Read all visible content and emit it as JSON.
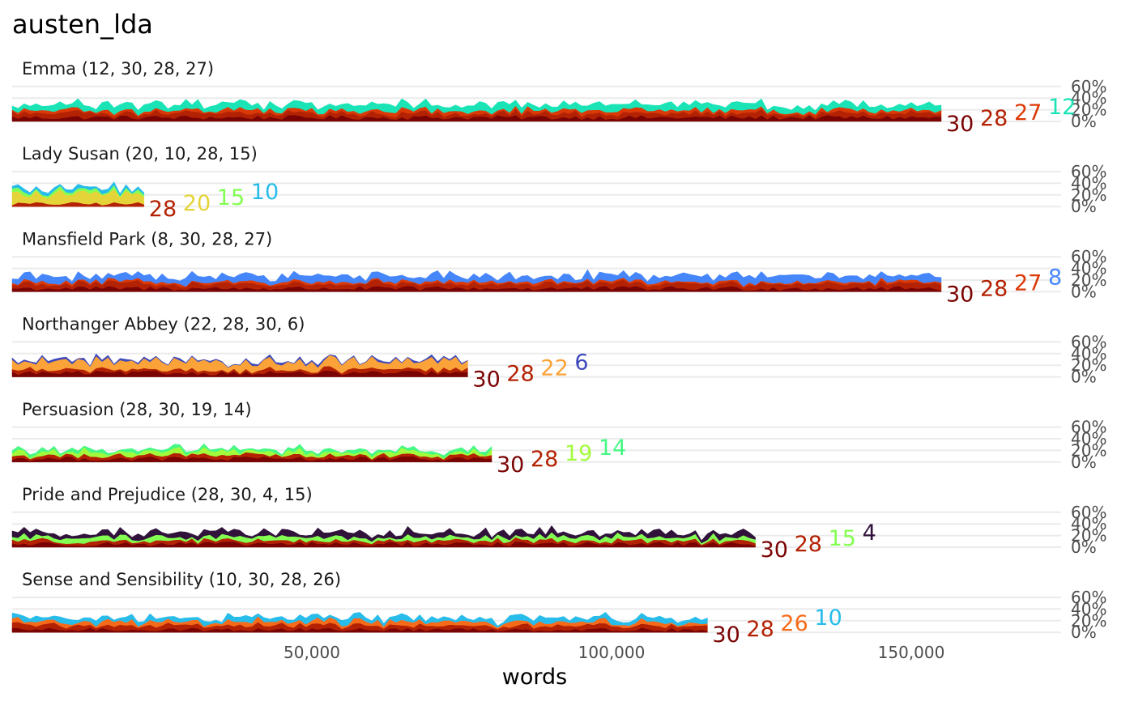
{
  "chart_data": {
    "type": "area",
    "title": "austen_lda",
    "xlabel": "words",
    "ylabel": "",
    "xlim": [
      0,
      175000
    ],
    "ylim": [
      0,
      60
    ],
    "x_ticks": [
      {
        "value": 50000,
        "label": "50,000"
      },
      {
        "value": 100000,
        "label": "100,000"
      },
      {
        "value": 150000,
        "label": "150,000"
      }
    ],
    "y_ticks": [
      {
        "value": 0,
        "label": "0%"
      },
      {
        "value": 20,
        "label": "20%"
      },
      {
        "value": 40,
        "label": "40%"
      },
      {
        "value": 60,
        "label": "60%"
      }
    ],
    "panels": [
      {
        "title": "Emma (12, 30, 28, 27)",
        "length": 155000,
        "series": [
          {
            "name": "30",
            "color": "#7a0403",
            "mean": 7,
            "amp": 4
          },
          {
            "name": "28",
            "color": "#b42204",
            "mean": 7,
            "amp": 4
          },
          {
            "name": "27",
            "color": "#db3a07",
            "mean": 5,
            "amp": 3
          },
          {
            "name": "12",
            "color": "#1ae4b6",
            "mean": 10,
            "amp": 5
          }
        ]
      },
      {
        "title": "Lady Susan (20, 10, 28, 15)",
        "length": 22000,
        "series": [
          {
            "name": "28",
            "color": "#b42204",
            "mean": 5,
            "amp": 3
          },
          {
            "name": "20",
            "color": "#e5d439",
            "mean": 18,
            "amp": 8
          },
          {
            "name": "15",
            "color": "#83ff52",
            "mean": 4,
            "amp": 3
          },
          {
            "name": "10",
            "color": "#28bceb",
            "mean": 5,
            "amp": 3
          }
        ]
      },
      {
        "title": "Mansfield Park (8, 30, 28, 27)",
        "length": 155000,
        "series": [
          {
            "name": "30",
            "color": "#7a0403",
            "mean": 6,
            "amp": 4
          },
          {
            "name": "28",
            "color": "#b42204",
            "mean": 8,
            "amp": 4
          },
          {
            "name": "27",
            "color": "#db3a07",
            "mean": 3,
            "amp": 2
          },
          {
            "name": "8",
            "color": "#4686fb",
            "mean": 10,
            "amp": 6
          }
        ]
      },
      {
        "title": "Northanger Abbey (22, 28, 30, 6)",
        "length": 76000,
        "series": [
          {
            "name": "30",
            "color": "#7a0403",
            "mean": 7,
            "amp": 4
          },
          {
            "name": "28",
            "color": "#b42204",
            "mean": 5,
            "amp": 3
          },
          {
            "name": "22",
            "color": "#fba238",
            "mean": 14,
            "amp": 7
          },
          {
            "name": "6",
            "color": "#3e49bb",
            "mean": 2,
            "amp": 2
          }
        ]
      },
      {
        "title": "Persuasion (28, 30, 19, 14)",
        "length": 80000,
        "series": [
          {
            "name": "30",
            "color": "#7a0403",
            "mean": 6,
            "amp": 4
          },
          {
            "name": "28",
            "color": "#b42204",
            "mean": 5,
            "amp": 3
          },
          {
            "name": "19",
            "color": "#a2fc3c",
            "mean": 6,
            "amp": 5
          },
          {
            "name": "14",
            "color": "#46f884",
            "mean": 4,
            "amp": 3
          }
        ]
      },
      {
        "title": "Pride and Prejudice (28, 30, 4, 15)",
        "length": 124000,
        "series": [
          {
            "name": "30",
            "color": "#7a0403",
            "mean": 6,
            "amp": 4
          },
          {
            "name": "28",
            "color": "#b42204",
            "mean": 5,
            "amp": 3
          },
          {
            "name": "15",
            "color": "#83ff52",
            "mean": 6,
            "amp": 4
          },
          {
            "name": "4",
            "color": "#30123b",
            "mean": 8,
            "amp": 6
          }
        ]
      },
      {
        "title": "Sense and Sensibility (10, 30, 28, 26)",
        "length": 116000,
        "series": [
          {
            "name": "30",
            "color": "#7a0403",
            "mean": 5,
            "amp": 3
          },
          {
            "name": "28",
            "color": "#b42204",
            "mean": 7,
            "amp": 4
          },
          {
            "name": "26",
            "color": "#f66b19",
            "mean": 6,
            "amp": 4
          },
          {
            "name": "10",
            "color": "#28bceb",
            "mean": 7,
            "amp": 4
          }
        ]
      }
    ]
  }
}
